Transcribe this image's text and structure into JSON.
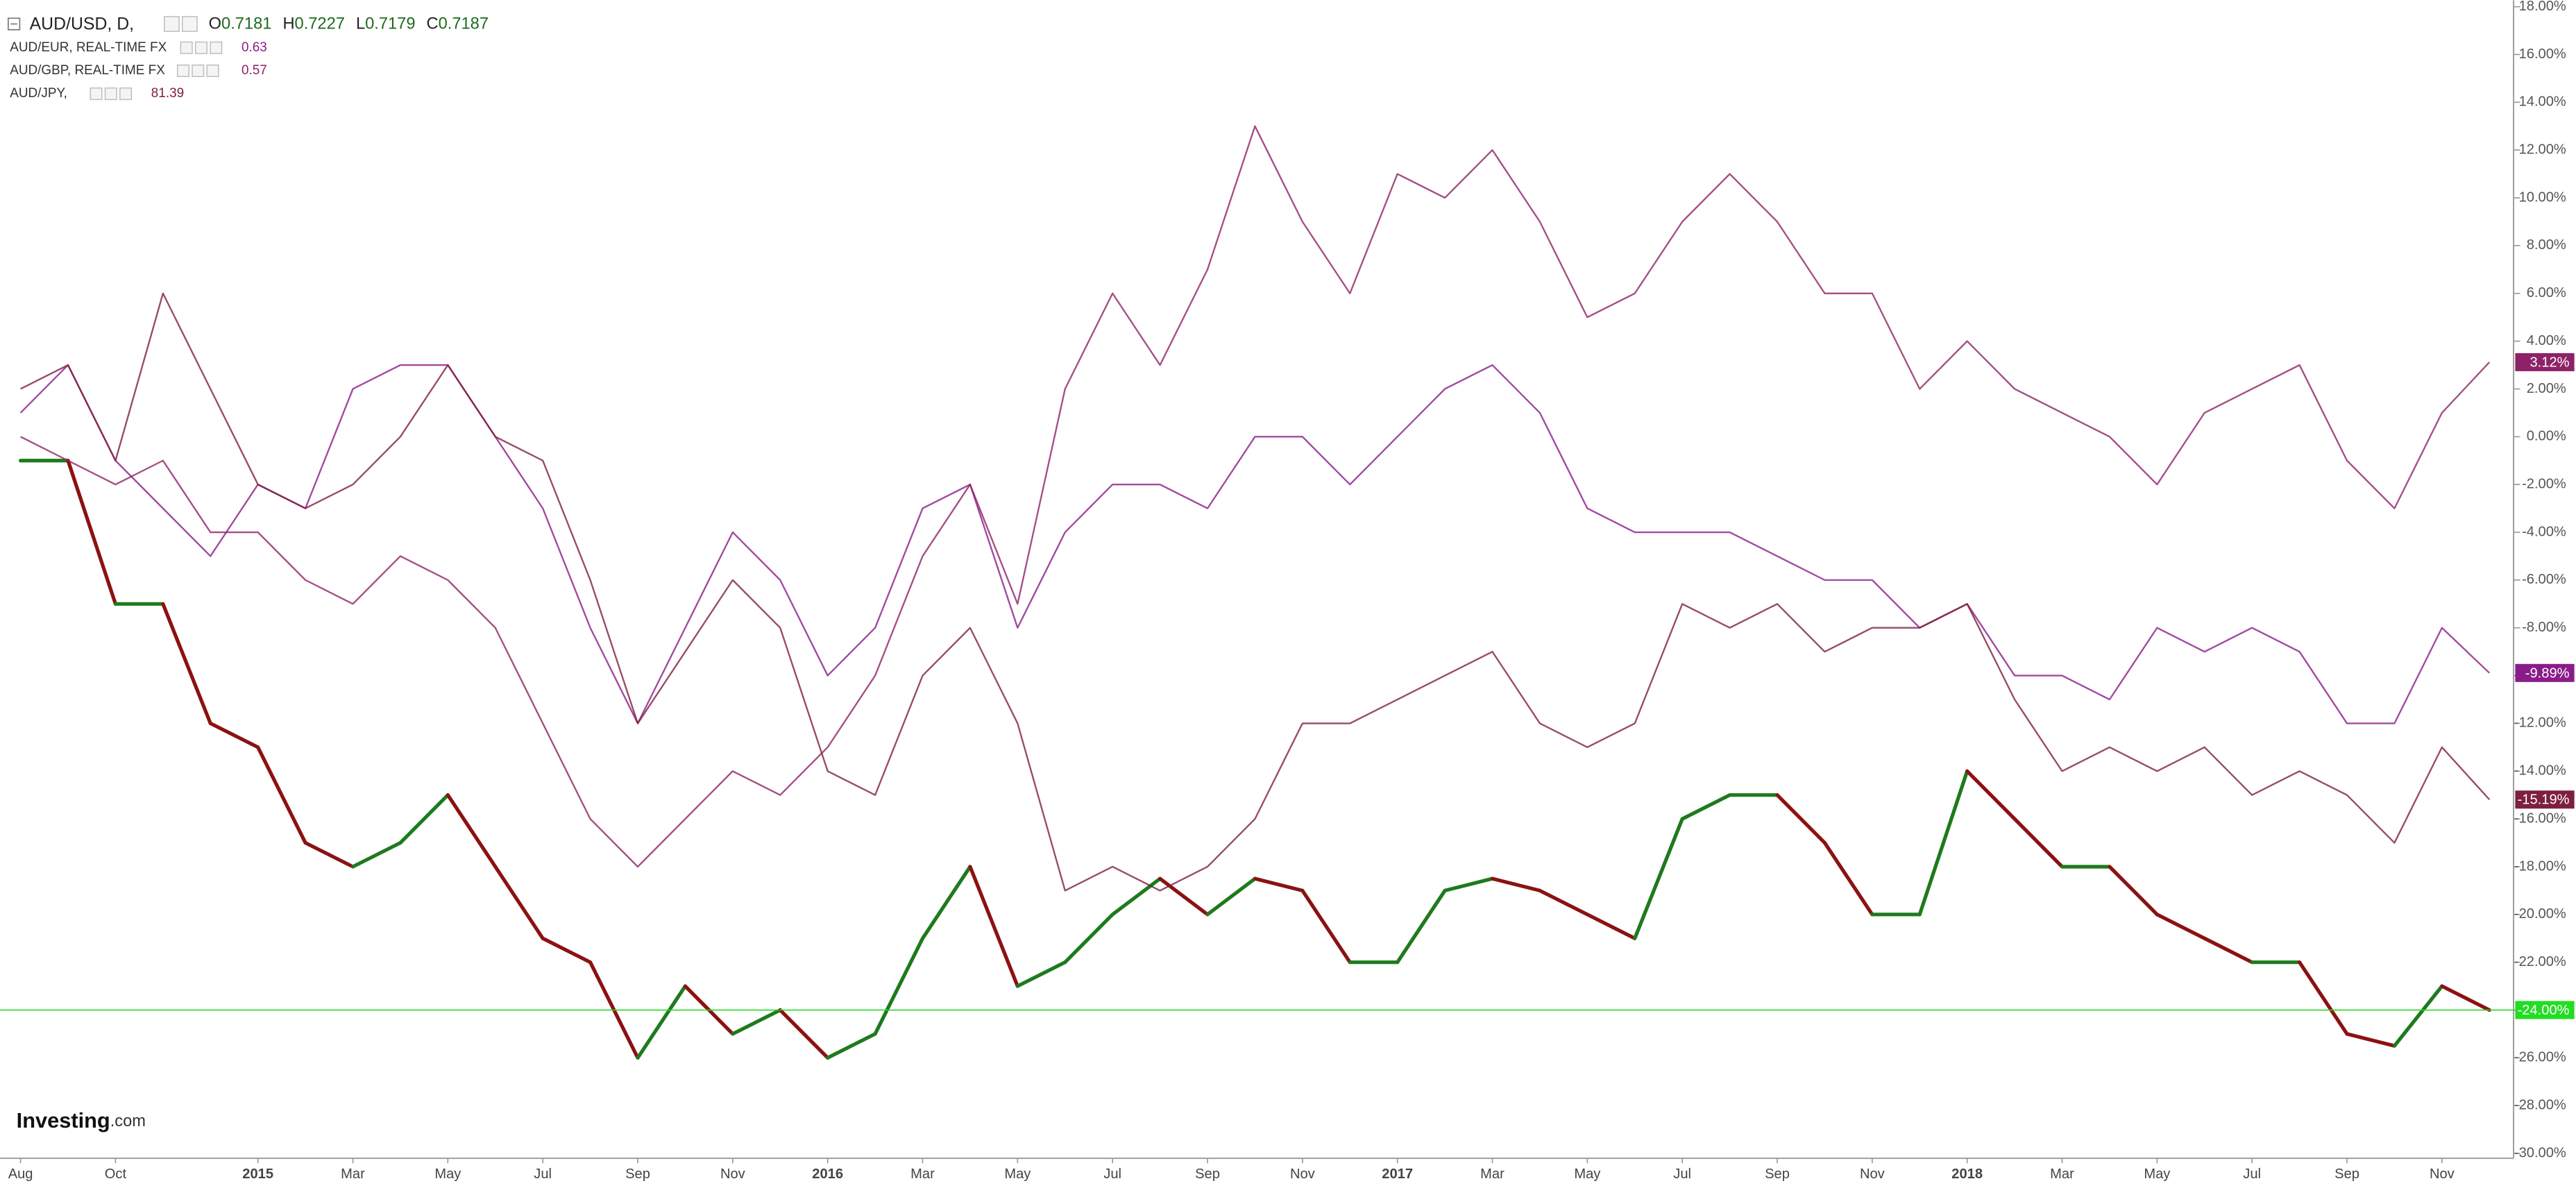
{
  "chart_data": {
    "type": "line",
    "grid": false,
    "categories": [
      "Aug",
      null,
      "Oct",
      null,
      null,
      "2015",
      null,
      "Mar",
      null,
      "May",
      null,
      "Jul",
      null,
      "Sep",
      null,
      "Nov",
      null,
      "2016",
      null,
      "Mar",
      null,
      "May",
      null,
      "Jul",
      null,
      "Sep",
      null,
      "Nov",
      null,
      "2017",
      null,
      "Mar",
      null,
      "May",
      null,
      "Jul",
      null,
      "Sep",
      null,
      "Nov",
      null,
      "2018",
      null,
      "Mar",
      null,
      "May",
      null,
      "Jul",
      null,
      "Sep",
      null,
      "Nov",
      null
    ],
    "ylim": [
      -30,
      18
    ],
    "yticks": [
      {
        "value": 18,
        "label": "18.00%"
      },
      {
        "value": 16,
        "label": "16.00%"
      },
      {
        "value": 14,
        "label": "14.00%"
      },
      {
        "value": 12,
        "label": "12.00%"
      },
      {
        "value": 10,
        "label": "10.00%"
      },
      {
        "value": 8,
        "label": "8.00%"
      },
      {
        "value": 6,
        "label": "6.00%"
      },
      {
        "value": 4,
        "label": "4.00%"
      },
      {
        "value": 2,
        "label": "2.00%"
      },
      {
        "value": 0,
        "label": "0.00%"
      },
      {
        "value": -2,
        "label": "-2.00%"
      },
      {
        "value": -4,
        "label": "-4.00%"
      },
      {
        "value": -6,
        "label": "-6.00%"
      },
      {
        "value": -8,
        "label": "-8.00%"
      },
      {
        "value": -10,
        "label": "-10.00%"
      },
      {
        "value": -12,
        "label": "-12.00%"
      },
      {
        "value": -14,
        "label": "-14.00%"
      },
      {
        "value": -16,
        "label": "-16.00%"
      },
      {
        "value": -18,
        "label": "-18.00%"
      },
      {
        "value": -20,
        "label": "-20.00%"
      },
      {
        "value": -22,
        "label": "-22.00%"
      },
      {
        "value": -24,
        "label": "-24.00%"
      },
      {
        "value": -26,
        "label": "-26.00%"
      },
      {
        "value": -28,
        "label": "-28.00%"
      },
      {
        "value": -30,
        "label": "-30.00%"
      }
    ],
    "watermark": [
      "Investing",
      ".com"
    ],
    "series": [
      {
        "name": "AUD/USD, D,",
        "color": "#22dd22",
        "up_color": "#1e7a1e",
        "down_color": "#8b1212",
        "ohlc_labels": [
          "O",
          "H",
          "L",
          "C"
        ],
        "ohlc": [
          0.7181,
          0.7227,
          0.7179,
          0.7187
        ],
        "values": [
          -1,
          -1,
          -7,
          -7,
          -12,
          -13,
          -17,
          -18,
          -17,
          -15,
          -18,
          -21,
          -22,
          -26,
          -23,
          -25,
          -24,
          -26,
          -25,
          -21,
          -18,
          -23,
          -22,
          -20,
          -18.5,
          -20,
          -18.5,
          -19,
          -22,
          -22,
          -19,
          -18.5,
          -19,
          -20,
          -21,
          -16,
          -15,
          -15,
          -17,
          -20,
          -20,
          -14,
          -16,
          -18,
          -18,
          -20,
          -21,
          -22,
          -22,
          -25,
          -25.5,
          -23,
          -24
        ],
        "value_labels": [
          null,
          null,
          null,
          null,
          null,
          null,
          null,
          null,
          null,
          null,
          null,
          null,
          null,
          null,
          null,
          null,
          null,
          null,
          null,
          null,
          null,
          null,
          null,
          null,
          null,
          null,
          null,
          null,
          null,
          null,
          null,
          null,
          null,
          null,
          null,
          null,
          null,
          null,
          null,
          null,
          null,
          null,
          null,
          null,
          null,
          null,
          null,
          null,
          null,
          null,
          null,
          null,
          "-24.00%"
        ]
      },
      {
        "name": "AUD/EUR, REAL-TIME FX",
        "color": "#8a1c8a",
        "last": 0.63,
        "values": [
          1,
          3,
          -1,
          -3,
          -5,
          -2,
          -3,
          2,
          3,
          3,
          0,
          -3,
          -8,
          -12,
          -8,
          -4,
          -6,
          -10,
          -8,
          -3,
          -2,
          -8,
          -4,
          -2,
          -2,
          -3,
          0,
          0,
          -2,
          0,
          2,
          3,
          1,
          -3,
          -4,
          -4,
          -4,
          -5,
          -6,
          -6,
          -8,
          -7,
          -10,
          -10,
          -11,
          -8,
          -9,
          -8,
          -9,
          -12,
          -12,
          -8,
          -9.89
        ],
        "value_labels": [
          null,
          null,
          null,
          null,
          null,
          null,
          null,
          null,
          null,
          null,
          null,
          null,
          null,
          null,
          null,
          null,
          null,
          null,
          null,
          null,
          null,
          null,
          null,
          null,
          null,
          null,
          null,
          null,
          null,
          null,
          null,
          null,
          null,
          null,
          null,
          null,
          null,
          null,
          null,
          null,
          null,
          null,
          null,
          null,
          null,
          null,
          null,
          null,
          null,
          null,
          null,
          null,
          "-9.89%"
        ]
      },
      {
        "name": "AUD/GBP, REAL-TIME FX",
        "color": "#8e2268",
        "last": 0.57,
        "values": [
          0,
          -1,
          -2,
          -1,
          -4,
          -4,
          -6,
          -7,
          -5,
          -6,
          -8,
          -12,
          -16,
          -18,
          -16,
          -14,
          -15,
          -13,
          -10,
          -5,
          -2,
          -7,
          2,
          6,
          3,
          7,
          13,
          9,
          6,
          11,
          10,
          12,
          9,
          5,
          6,
          9,
          11,
          9,
          6,
          6,
          2,
          4,
          2,
          1,
          0,
          -2,
          1,
          2,
          3,
          -1,
          -3,
          1,
          3.12
        ],
        "value_labels": [
          null,
          null,
          null,
          null,
          null,
          null,
          null,
          null,
          null,
          null,
          null,
          null,
          null,
          null,
          null,
          null,
          null,
          null,
          null,
          null,
          null,
          null,
          null,
          null,
          null,
          null,
          null,
          null,
          null,
          null,
          null,
          null,
          null,
          null,
          null,
          null,
          null,
          null,
          null,
          null,
          null,
          null,
          null,
          null,
          null,
          null,
          null,
          null,
          null,
          null,
          null,
          null,
          "3.12%"
        ]
      },
      {
        "name": "AUD/JPY,",
        "color": "#7d1f3f",
        "last": 81.39,
        "values": [
          2,
          3,
          -1,
          6,
          2,
          -2,
          -3,
          -2,
          0,
          3,
          0,
          -1,
          -6,
          -12,
          -9,
          -6,
          -8,
          -14,
          -15,
          -10,
          -8,
          -12,
          -19,
          -18,
          -19,
          -18,
          -16,
          -12,
          -12,
          -11,
          -10,
          -9,
          -12,
          -13,
          -12,
          -7,
          -8,
          -7,
          -9,
          -8,
          -8,
          -7,
          -11,
          -14,
          -13,
          -14,
          -13,
          -15,
          -14,
          -15,
          -17,
          -13,
          -15.19
        ],
        "value_labels": [
          null,
          null,
          null,
          null,
          null,
          null,
          null,
          null,
          null,
          null,
          null,
          null,
          null,
          null,
          null,
          null,
          null,
          null,
          null,
          null,
          null,
          null,
          null,
          null,
          null,
          null,
          null,
          null,
          null,
          null,
          null,
          null,
          null,
          null,
          null,
          null,
          null,
          null,
          null,
          null,
          null,
          null,
          null,
          null,
          null,
          null,
          null,
          null,
          null,
          null,
          null,
          null,
          "-15.19%"
        ]
      }
    ]
  }
}
